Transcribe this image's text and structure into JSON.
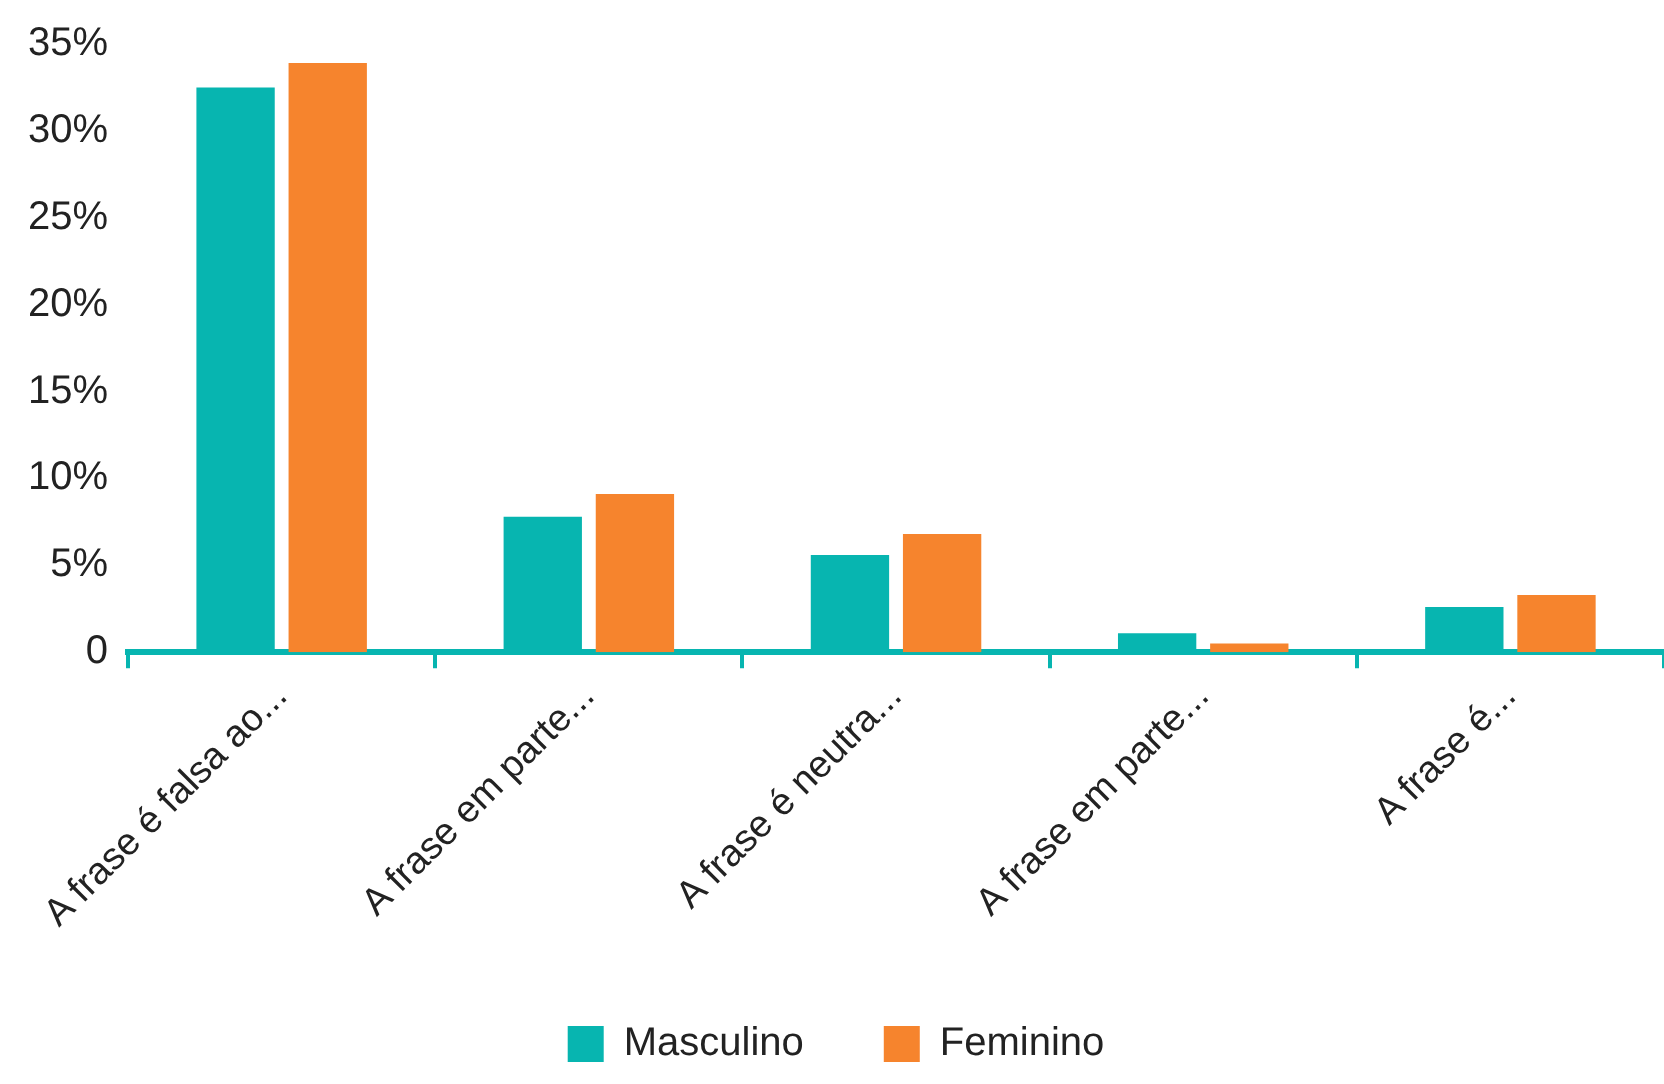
{
  "chart_data": {
    "type": "bar",
    "categories": [
      "A frase é falsa ao...",
      "A frase em parte...",
      "A frase é neutra...",
      "A frase em parte...",
      "A frase é..."
    ],
    "series": [
      {
        "name": "Masculino",
        "color": "#07b5b0",
        "values": [
          32.5,
          7.8,
          5.6,
          1.1,
          2.6
        ]
      },
      {
        "name": "Feminino",
        "color": "#f6842d",
        "values": [
          33.9,
          9.1,
          6.8,
          0.5,
          3.3
        ]
      }
    ],
    "ylim": [
      0,
      35
    ],
    "yticks": [
      0,
      {
        "value": 5,
        "label": "5%"
      },
      {
        "value": 10,
        "label": "10%"
      },
      {
        "value": 15,
        "label": "15%"
      },
      {
        "value": 20,
        "label": "20%"
      },
      {
        "value": 25,
        "label": "25%"
      },
      {
        "value": 30,
        "label": "30%"
      },
      {
        "value": 35,
        "label": "35%"
      }
    ],
    "grid": false,
    "legend": "bottom"
  }
}
